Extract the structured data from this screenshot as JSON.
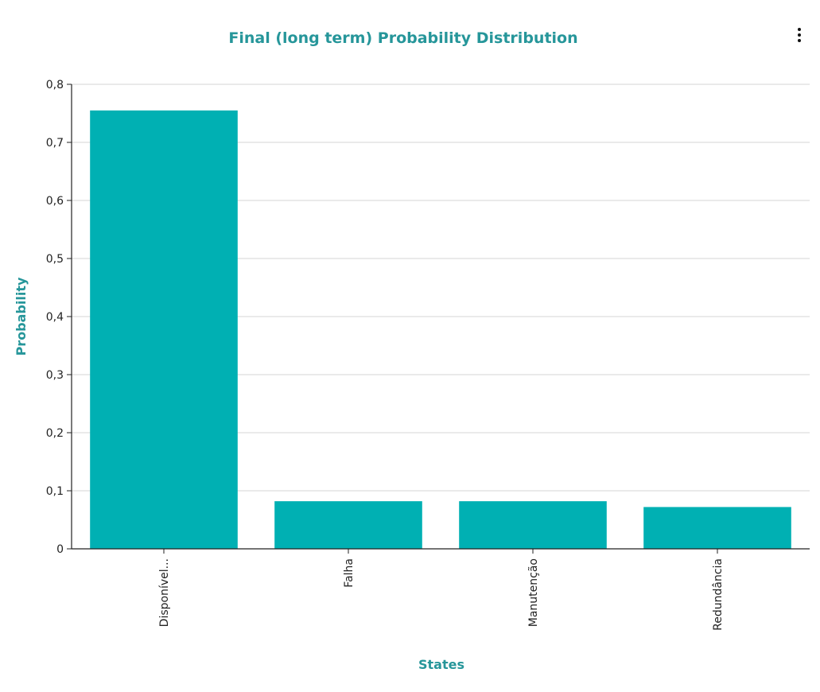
{
  "chart_data": {
    "type": "bar",
    "title": "Final (long term) Probability Distribution",
    "xlabel": "States",
    "ylabel": "Probability",
    "categories": [
      "Disponível...",
      "Falha",
      "Manutenção",
      "Redundância"
    ],
    "values": [
      0.755,
      0.082,
      0.082,
      0.072
    ],
    "ylim": [
      0,
      0.8
    ],
    "yticks": [
      0,
      0.1,
      0.2,
      0.3,
      0.4,
      0.5,
      0.6,
      0.7,
      0.8
    ],
    "ytick_labels": [
      "0",
      "0,1",
      "0,2",
      "0,3",
      "0,4",
      "0,5",
      "0,6",
      "0,7",
      "0,8"
    ],
    "grid": true,
    "colors": {
      "bar": "#00b0b3",
      "title": "#26969a",
      "grid": "#d4d4d4",
      "axis": "#222222"
    }
  },
  "menu": {
    "icon": "more-vertical-icon"
  }
}
